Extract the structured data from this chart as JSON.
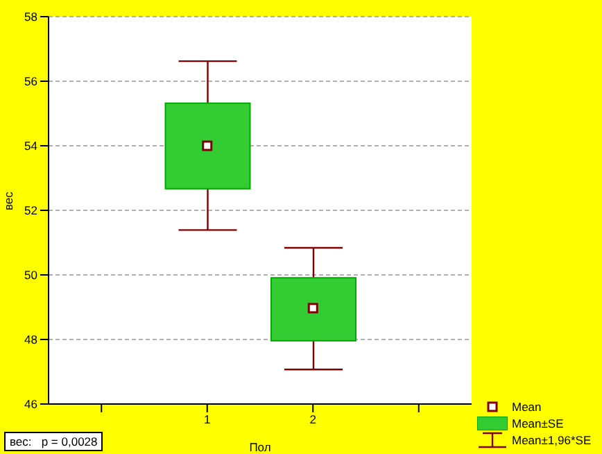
{
  "chart_data": {
    "type": "box",
    "xlabel": "Пол",
    "ylabel": "вес",
    "categories": [
      "1",
      "2"
    ],
    "series": [
      {
        "name": "Mean±SE",
        "color": "#33cc33",
        "boxes": [
          {
            "low": 51.39,
            "q1": 52.67,
            "q3": 55.32,
            "high": 56.62,
            "mean": 54.0
          },
          {
            "low": 47.07,
            "q1": 47.96,
            "q3": 49.91,
            "high": 50.84,
            "mean": 48.97
          }
        ]
      }
    ],
    "ylim": [
      46,
      58
    ],
    "yticks": [
      46,
      48,
      50,
      52,
      54,
      56,
      58
    ],
    "grid": "y",
    "legend": "bottom right",
    "annotations": [
      "вес:   p = 0,0028",
      "Mean",
      "Mean±1,96*SE"
    ]
  }
}
